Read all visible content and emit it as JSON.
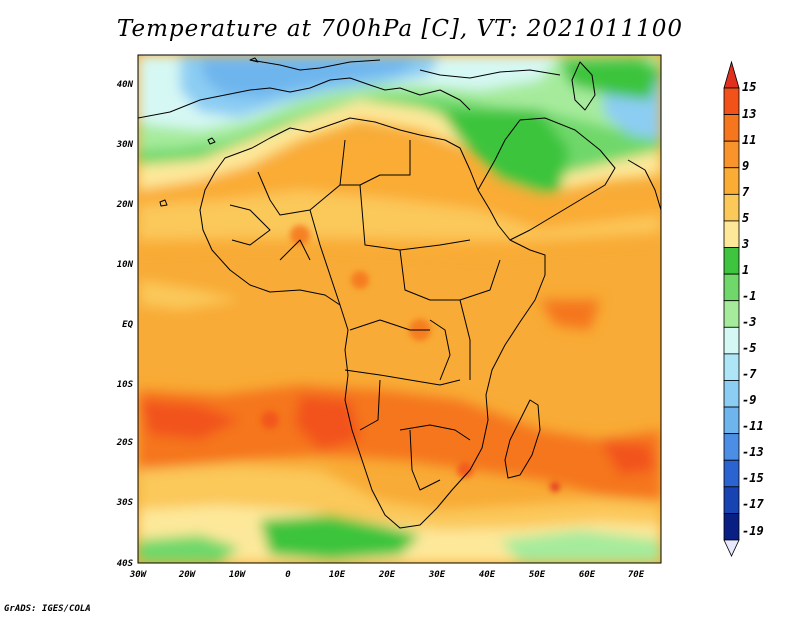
{
  "title": "Temperature at 700hPa [C], VT: 2021011100",
  "credit": "GrADS: IGES/COLA",
  "lat_labels": [
    "40N",
    "30N",
    "20N",
    "10N",
    "EQ",
    "10S",
    "20S",
    "30S",
    "40S"
  ],
  "lon_labels": [
    "30W",
    "20W",
    "10W",
    "0",
    "10E",
    "20E",
    "30E",
    "40E",
    "50E",
    "60E",
    "70E"
  ],
  "colorbar": {
    "labels": [
      "15",
      "13",
      "11",
      "9",
      "7",
      "5",
      "3",
      "1",
      "-1",
      "-3",
      "-5",
      "-7",
      "-9",
      "-11",
      "-13",
      "-15",
      "-17",
      "-19"
    ],
    "colors": [
      "#e0301e",
      "#f2521a",
      "#f5761d",
      "#f8942b",
      "#faac35",
      "#fbc85a",
      "#fde89a",
      "#3ec43e",
      "#70d86a",
      "#a6eb9c",
      "#d6f8f4",
      "#aee6f8",
      "#8ccdf3",
      "#6eb5ee",
      "#4c8ee5",
      "#2b63d0",
      "#1843b3",
      "#0a1f84",
      "#101060"
    ]
  },
  "map": {
    "ocean_color": "#f8a933",
    "coast_color": "#000000"
  }
}
